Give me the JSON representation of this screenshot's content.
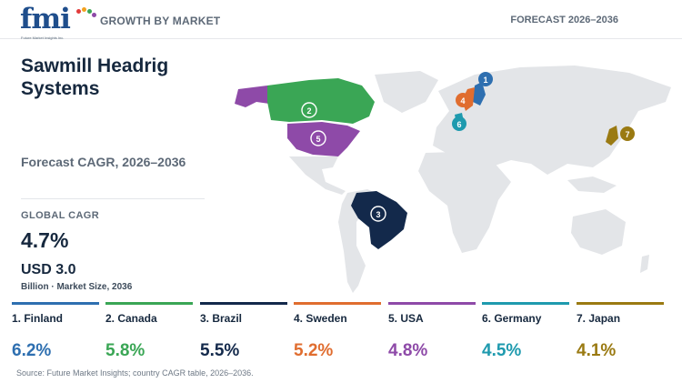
{
  "header": {
    "logo": {
      "word": "fmi",
      "subtitle": "Future Market Insights Inc."
    },
    "left_label": "GROWTH BY MARKET",
    "right_label": "FORECAST 2026–2036"
  },
  "summary": {
    "title": "Sawmill Headrig Systems",
    "subtitle": "Forecast CAGR, 2026–2036",
    "global_cagr_label": "GLOBAL CAGR",
    "global_cagr_value": "4.7%",
    "market_size_value": "USD 3.0",
    "market_size_note": "Billion · Market Size, 2036"
  },
  "map": {
    "markers": [
      {
        "rank": "1",
        "country": "Finland",
        "color": "#2e6fb0"
      },
      {
        "rank": "2",
        "country": "Canada",
        "color": "#3aa655"
      },
      {
        "rank": "3",
        "country": "Brazil",
        "color": "#13294b"
      },
      {
        "rank": "4",
        "country": "Sweden",
        "color": "#e06d2f"
      },
      {
        "rank": "5",
        "country": "USA",
        "color": "#8e4aa8"
      },
      {
        "rank": "6",
        "country": "Germany",
        "color": "#1e9aae"
      },
      {
        "rank": "7",
        "country": "Japan",
        "color": "#9a7a12"
      }
    ]
  },
  "countries": [
    {
      "label": "1. Finland",
      "value": "6.2%",
      "color": "#2e6fb0"
    },
    {
      "label": "2. Canada",
      "value": "5.8%",
      "color": "#3aa655"
    },
    {
      "label": "3. Brazil",
      "value": "5.5%",
      "color": "#13294b"
    },
    {
      "label": "4. Sweden",
      "value": "5.2%",
      "color": "#e06d2f"
    },
    {
      "label": "5. USA",
      "value": "4.8%",
      "color": "#8e4aa8"
    },
    {
      "label": "6. Germany",
      "value": "4.5%",
      "color": "#1e9aae"
    },
    {
      "label": "7. Japan",
      "value": "4.1%",
      "color": "#9a7a12"
    }
  ],
  "source": "Source: Future Market Insights; country CAGR table, 2026–2036."
}
